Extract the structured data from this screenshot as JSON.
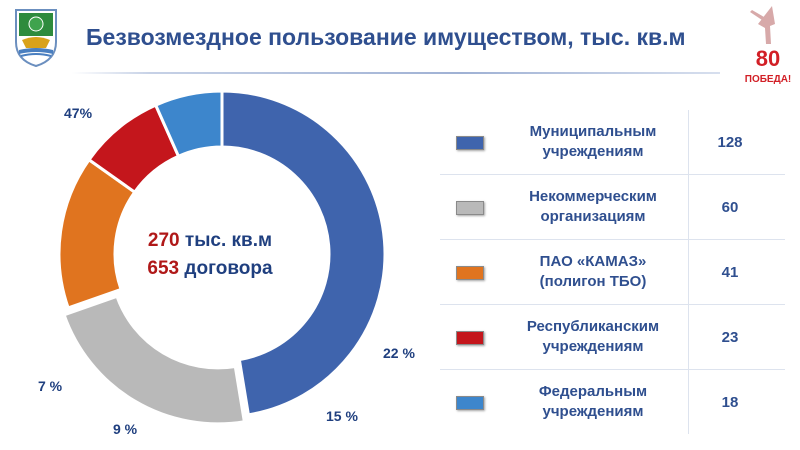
{
  "header": {
    "title": "Безвозмездное пользование имуществом, тыс. кв.м",
    "emblem_icon": "city-coat-of-arms-icon",
    "victory_badge": {
      "icon": "victory-80-badge-icon",
      "number": "80",
      "caption": "ПОБЕДА!"
    }
  },
  "center": {
    "area_value": "270",
    "area_unit": "тыс. кв.м",
    "contracts_value": "653",
    "contracts_unit": "договора"
  },
  "chart_data": {
    "type": "pie",
    "variant": "donut",
    "title": "Безвозмездное пользование имуществом, тыс. кв.м",
    "categories": [
      "Муниципальным учреждениям",
      "Некоммерческим организациям",
      "ПАО «КАМАЗ» (полигон ТБО)",
      "Республиканским учреждениям",
      "Федеральным учреждениям"
    ],
    "values": [
      128,
      60,
      41,
      23,
      18
    ],
    "percent_labels": [
      "47%",
      "22 %",
      "15 %",
      "9 %",
      "7 %"
    ],
    "colors": [
      "#3f64ad",
      "#b9b9b9",
      "#e0741f",
      "#c4161c",
      "#3d86cc"
    ],
    "exploded_index": 1,
    "legend_placement": "right"
  },
  "legend": {
    "rows": [
      {
        "label": "Муниципальным\nучреждениям",
        "value": "128",
        "color": "#3f64ad"
      },
      {
        "label": "Некоммерческим\nорганизациям",
        "value": "60",
        "color": "#b9b9b9"
      },
      {
        "label": "ПАО «КАМАЗ»\n(полигон ТБО)",
        "value": "41",
        "color": "#e0741f"
      },
      {
        "label": "Республиканским\nучреждениям",
        "value": "23",
        "color": "#c4161c"
      },
      {
        "label": "Федеральным\nучреждениям",
        "value": "18",
        "color": "#3d86cc"
      }
    ]
  }
}
